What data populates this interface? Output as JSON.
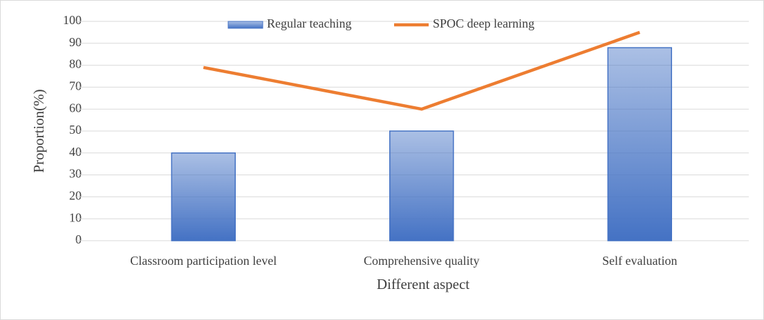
{
  "chart_data": {
    "type": "bar",
    "categories": [
      "Classroom participation level",
      "Comprehensive quality",
      "Self evaluation"
    ],
    "series": [
      {
        "name": "Regular teaching",
        "type": "bar",
        "color": "#4472c4",
        "values": [
          40,
          50,
          88
        ]
      },
      {
        "name": "SPOC deep learning",
        "type": "line",
        "color": "#ed7d31",
        "values": [
          79,
          60,
          95
        ]
      }
    ],
    "xlabel": "Different aspect",
    "ylabel": "Proportion(%)",
    "ylim": [
      0,
      100
    ],
    "yticks": [
      0,
      10,
      20,
      30,
      40,
      50,
      60,
      70,
      80,
      90,
      100
    ],
    "grid": true,
    "legend": "top"
  }
}
